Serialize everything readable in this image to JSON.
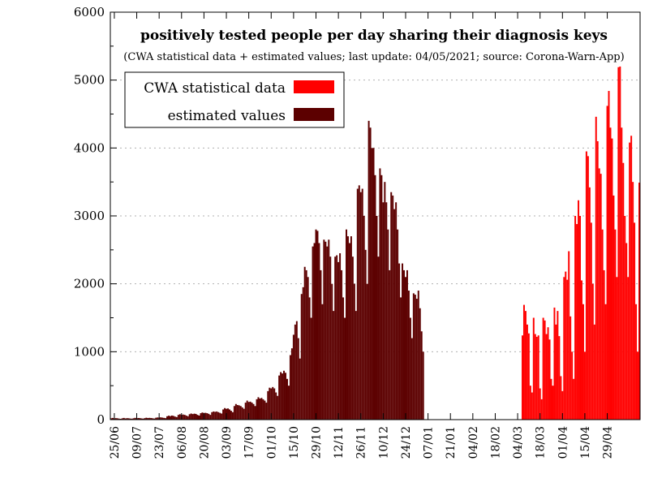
{
  "chart_data": {
    "type": "bar",
    "title": "positively tested people per day sharing their diagnosis keys",
    "subtitle": "(CWA statistical data + estimated values; last update: 04/05/2021; source: Corona-Warn-App)",
    "xlabel": "",
    "ylabel": "",
    "ylim": [
      0,
      6000
    ],
    "yticks": [
      0,
      1000,
      2000,
      3000,
      4000,
      5000,
      6000
    ],
    "x_tick_labels": [
      "25/06",
      "09/07",
      "23/07",
      "06/08",
      "20/08",
      "03/09",
      "17/09",
      "01/10",
      "15/10",
      "29/10",
      "12/11",
      "26/11",
      "10/12",
      "24/12",
      "07/01",
      "21/01",
      "04/02",
      "18/02",
      "04/03",
      "18/03",
      "01/04",
      "15/04",
      "29/04"
    ],
    "grid": "horizontal dotted",
    "legend_position": "top-left",
    "stacked": true,
    "start_date": "2020-06-23",
    "series": [
      {
        "name": "CWA statistical data",
        "color": "#ff0000",
        "values": [
          0,
          0,
          0,
          0,
          0,
          0,
          0,
          0,
          0,
          0,
          0,
          0,
          0,
          0,
          0,
          0,
          0,
          0,
          0,
          0,
          0,
          0,
          0,
          0,
          0,
          0,
          0,
          0,
          0,
          0,
          0,
          0,
          0,
          0,
          0,
          0,
          0,
          0,
          0,
          0,
          0,
          0,
          0,
          0,
          0,
          0,
          0,
          0,
          0,
          0,
          0,
          0,
          0,
          0,
          0,
          0,
          0,
          0,
          0,
          0,
          0,
          0,
          0,
          0,
          0,
          0,
          0,
          0,
          0,
          0,
          0,
          0,
          0,
          0,
          0,
          0,
          0,
          0,
          0,
          0,
          0,
          0,
          0,
          0,
          0,
          0,
          0,
          0,
          0,
          0,
          0,
          0,
          0,
          0,
          0,
          0,
          0,
          0,
          0,
          0,
          0,
          0,
          0,
          0,
          0,
          0,
          0,
          0,
          0,
          0,
          0,
          0,
          0,
          0,
          0,
          0,
          0,
          0,
          0,
          0,
          0,
          0,
          0,
          0,
          0,
          0,
          0,
          0,
          0,
          0,
          0,
          0,
          0,
          0,
          0,
          0,
          0,
          0,
          0,
          0,
          0,
          0,
          0,
          0,
          0,
          0,
          0,
          0,
          0,
          0,
          0,
          0,
          0,
          0,
          0,
          0,
          0,
          0,
          0,
          0,
          0,
          0,
          0,
          0,
          0,
          0,
          0,
          0,
          0,
          0,
          0,
          0,
          0,
          0,
          0,
          0,
          0,
          0,
          0,
          0,
          0,
          0,
          0,
          0,
          0,
          0,
          0,
          0,
          0,
          0,
          0,
          0,
          0,
          0,
          0,
          0,
          0,
          0,
          0,
          0,
          0,
          0,
          0,
          0,
          0,
          0,
          0,
          0,
          0,
          0,
          0,
          0,
          0,
          0,
          0,
          0,
          0,
          0,
          0,
          0,
          0,
          0,
          0,
          0,
          0,
          0,
          0,
          0,
          0,
          0,
          0,
          0,
          0,
          0,
          0,
          0,
          0,
          0,
          0,
          0,
          0,
          0,
          0,
          0,
          0,
          0,
          0,
          0,
          0,
          0,
          0,
          0,
          0,
          0,
          0,
          0,
          0,
          1240,
          1690,
          1600,
          1400,
          1270,
          500,
          400,
          1500,
          1260,
          1220,
          1240,
          460,
          300,
          1500,
          1460,
          1260,
          1360,
          1180,
          600,
          500,
          1650,
          1400,
          1600,
          1230,
          640,
          420,
          2100,
          2180,
          2060,
          2480,
          1520,
          1000,
          600,
          3000,
          2880,
          3230,
          3000,
          2050,
          1700,
          1000,
          3950,
          3880,
          3420,
          2900,
          2000,
          1400,
          4460,
          4100,
          3700,
          3620,
          2800,
          2200,
          1700,
          4620,
          4840,
          4300,
          4140,
          3300,
          2800,
          2100,
          5190,
          5200,
          4300,
          3780,
          3000,
          2600,
          2100,
          4080,
          4180,
          3500,
          2900,
          1700,
          1000,
          3490
        ]
      },
      {
        "name": "estimated values",
        "color": "#5c0000",
        "values": [
          20,
          25,
          18,
          22,
          20,
          15,
          12,
          20,
          25,
          18,
          22,
          20,
          16,
          14,
          20,
          26,
          20,
          24,
          22,
          18,
          15,
          22,
          28,
          24,
          26,
          24,
          20,
          16,
          28,
          32,
          30,
          34,
          30,
          26,
          22,
          50,
          58,
          52,
          60,
          55,
          45,
          38,
          70,
          80,
          70,
          75,
          70,
          60,
          50,
          80,
          90,
          82,
          88,
          84,
          70,
          60,
          95,
          105,
          98,
          100,
          95,
          85,
          70,
          110,
          120,
          115,
          120,
          110,
          100,
          90,
          150,
          170,
          160,
          165,
          150,
          130,
          110,
          200,
          230,
          215,
          210,
          200,
          180,
          160,
          250,
          280,
          260,
          265,
          250,
          230,
          200,
          300,
          330,
          310,
          320,
          300,
          280,
          250,
          420,
          470,
          460,
          480,
          460,
          400,
          350,
          650,
          700,
          680,
          720,
          690,
          600,
          500,
          950,
          1050,
          1250,
          1400,
          1450,
          1200,
          900,
          1850,
          1950,
          2250,
          2200,
          2100,
          1800,
          1500,
          2550,
          2600,
          2800,
          2780,
          2600,
          2200,
          1700,
          2650,
          2620,
          2550,
          2650,
          2400,
          2000,
          1600,
          2400,
          2420,
          2320,
          2450,
          2200,
          1800,
          1500,
          2800,
          2700,
          2600,
          2700,
          2400,
          2000,
          1600,
          3400,
          3450,
          3350,
          3400,
          3000,
          2500,
          2000,
          4400,
          4300,
          4000,
          4000,
          3600,
          3000,
          2400,
          3700,
          3600,
          3200,
          3500,
          3200,
          2800,
          2200,
          3350,
          3300,
          3100,
          3200,
          2800,
          2300,
          1800,
          2300,
          2200,
          2100,
          2200,
          1900,
          1500,
          1200,
          1860,
          1840,
          1780,
          1900,
          1640,
          1300,
          1000,
          0,
          0,
          0,
          0,
          0,
          0,
          0,
          0,
          0,
          0,
          0,
          0,
          0,
          0,
          0,
          0,
          0,
          0,
          0,
          0,
          0,
          0,
          0,
          0,
          0,
          0,
          0,
          0,
          0,
          0,
          0,
          0,
          0,
          0,
          0,
          0,
          0,
          0,
          0,
          0,
          0,
          0,
          0,
          0,
          0,
          0,
          0,
          0,
          0,
          0,
          0,
          0,
          0,
          0,
          0,
          0,
          0,
          0,
          0,
          0,
          0,
          0,
          0,
          0,
          0,
          0,
          0,
          0,
          0,
          0,
          0,
          0,
          0,
          0,
          0,
          0,
          0,
          0,
          0,
          0,
          0,
          0,
          0,
          0,
          0,
          0,
          0,
          0,
          0,
          0
        ]
      }
    ]
  }
}
